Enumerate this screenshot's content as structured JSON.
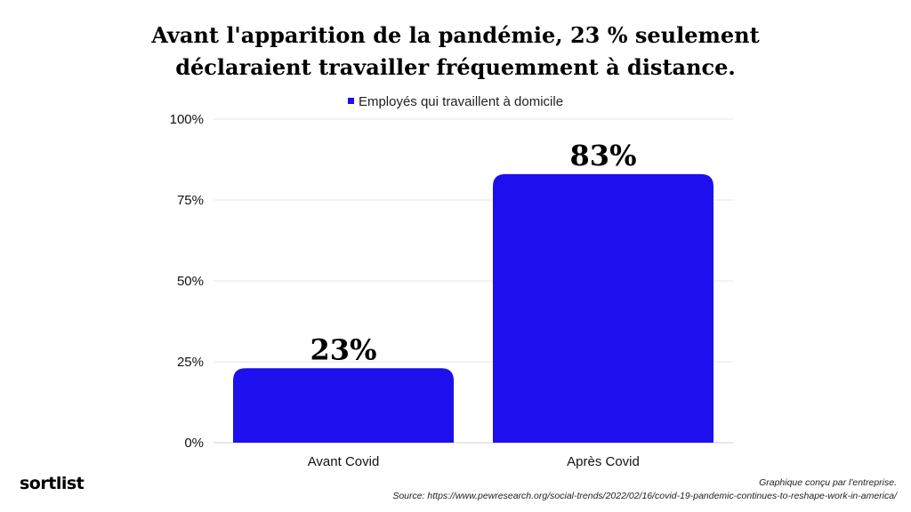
{
  "chart_data": {
    "type": "bar",
    "title_lines": [
      "Avant l'apparition de la pandémie, 23 % seulement",
      "déclaraient travailler fréquemment à distance."
    ],
    "categories": [
      "Avant Covid",
      "Après Covid"
    ],
    "series": [
      {
        "name": "Employés qui travaillent à domicile",
        "values": [
          23,
          83
        ],
        "color": "#1d0fee"
      }
    ],
    "data_labels": [
      "23%",
      "83%"
    ],
    "y_ticks": [
      {
        "value": 0,
        "label": "0%"
      },
      {
        "value": 25,
        "label": "25%"
      },
      {
        "value": 50,
        "label": "50%"
      },
      {
        "value": 75,
        "label": "75%"
      },
      {
        "value": 100,
        "label": "100%"
      }
    ],
    "ylim": [
      0,
      100
    ],
    "grid": true,
    "legend_position": "top-center"
  },
  "footer": {
    "logo": "sortlist",
    "credit": "Graphique conçu par l'entreprise.",
    "source": "Source: https://www.pewresearch.org/social-trends/2022/02/16/covid-19-pandemic-continues-to-reshape-work-in-america/"
  }
}
